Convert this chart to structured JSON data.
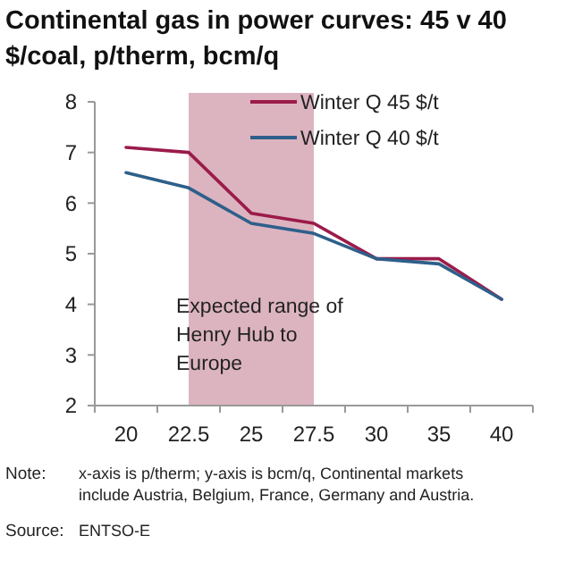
{
  "chart_data": {
    "type": "line",
    "title": "Continental  gas in power curves: 45 v 40 $/coal, p/therm, bcm/q",
    "categories": [
      "20",
      "22.5",
      "25",
      "27.5",
      "30",
      "35",
      "40"
    ],
    "series": [
      {
        "name": "Winter Q 45 $/t",
        "color": "#9b1b4a",
        "values": [
          7.1,
          7.0,
          5.8,
          5.6,
          4.9,
          4.9,
          4.1
        ]
      },
      {
        "name": "Winter Q 40 $/t",
        "color": "#2e5f8a",
        "values": [
          6.6,
          6.3,
          5.6,
          5.4,
          4.9,
          4.8,
          4.1
        ]
      }
    ],
    "ylim": [
      2,
      8
    ],
    "yticks": [
      2,
      3,
      4,
      5,
      6,
      7,
      8
    ],
    "grid": false,
    "legend": "top right",
    "marker": "none",
    "line_style": "solid",
    "bands": [
      {
        "axis": "x",
        "from": "22.5",
        "to": "27.5",
        "label": "Expected range of Henry Hub to Europe",
        "color": "#dcb4c0"
      }
    ],
    "annotations": [
      "Note: x-axis is p/therm; y-axis is bcm/q, Continental markets include Austria, Belgium, France, Germany and Austria.",
      "Source: ENTSO-E"
    ]
  }
}
